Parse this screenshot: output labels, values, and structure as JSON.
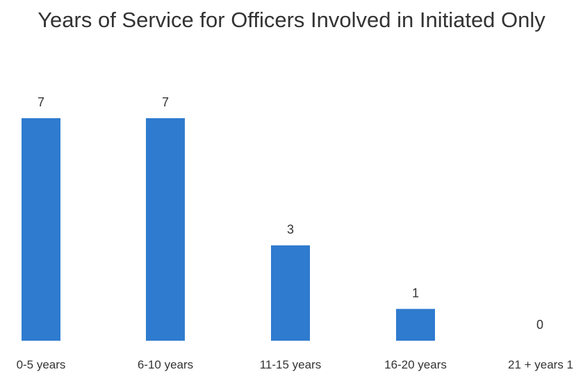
{
  "chart_data": {
    "type": "bar",
    "title": "Years of Service for Officers Involved in Initiated Only",
    "categories": [
      "0-5 years",
      "6-10 years",
      "11-15 years",
      "16-20 years",
      "21 + years 1"
    ],
    "values": [
      7,
      7,
      3,
      1,
      0
    ],
    "xlabel": "",
    "ylabel": "",
    "ylim": [
      0,
      7
    ],
    "grid": false,
    "legend": "none",
    "data_labels": true,
    "bar_color": "#2e7bcf"
  }
}
